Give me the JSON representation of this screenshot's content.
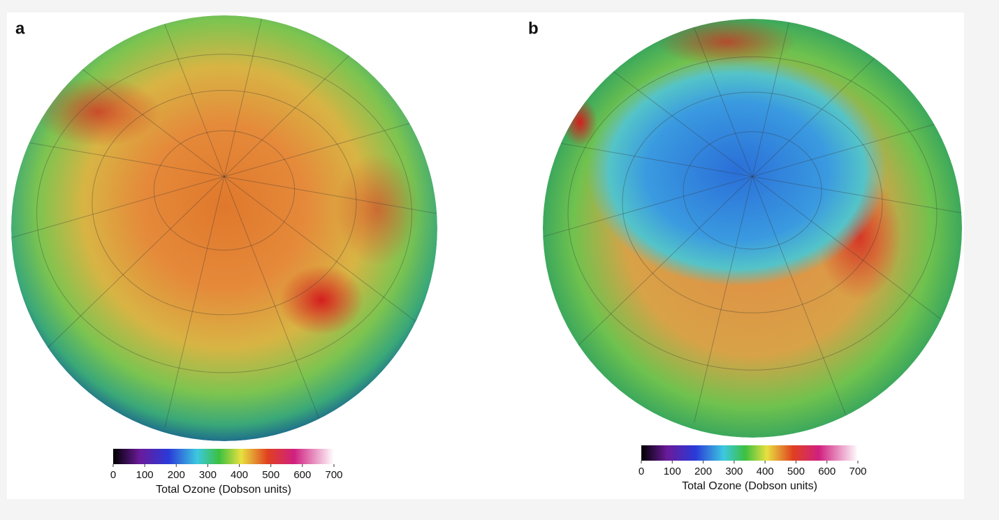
{
  "panels": [
    {
      "label": "a",
      "colorbar": {
        "lim": [
          0,
          700
        ],
        "ticks": [
          0,
          100,
          200,
          300,
          400,
          500,
          600,
          700
        ],
        "label": "Total Ozone (Dobson units)"
      }
    },
    {
      "label": "b",
      "colorbar": {
        "lim": [
          0,
          700
        ],
        "ticks": [
          0,
          100,
          200,
          300,
          400,
          500,
          600,
          700
        ],
        "label": "Total Ozone (Dobson units)"
      }
    }
  ]
}
